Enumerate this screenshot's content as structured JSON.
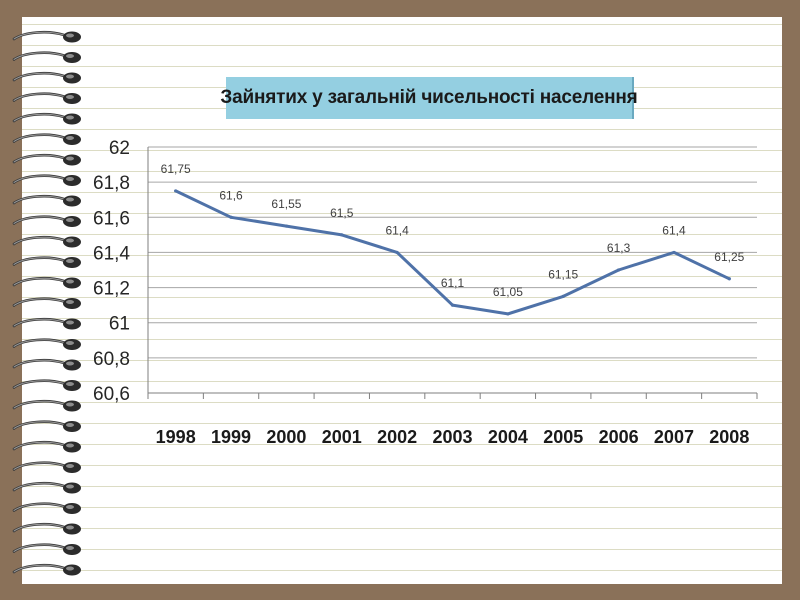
{
  "slide": {
    "background": "#8a7159",
    "paper": "#ffffff"
  },
  "chart_data": {
    "type": "line",
    "title": "Зайнятих у загальній чисельності населення",
    "categories": [
      "1998",
      "1999",
      "2000",
      "2001",
      "2002",
      "2003",
      "2004",
      "2005",
      "2006",
      "2007",
      "2008"
    ],
    "series": [
      {
        "values": [
          61.75,
          61.6,
          61.55,
          61.5,
          61.4,
          61.1,
          61.05,
          61.15,
          61.3,
          61.4,
          61.25
        ],
        "labels": [
          "61,75",
          "61,6",
          "61,55",
          "61,5",
          "61,4",
          "61,1",
          "61,05",
          "61,15",
          "61,3",
          "61,4",
          "61,25"
        ],
        "color": "#4f72a8"
      }
    ],
    "yticks": [
      "60,6",
      "60,8",
      "61",
      "61,2",
      "61,4",
      "61,6",
      "61,8",
      "62"
    ],
    "ylim": [
      60.6,
      62
    ],
    "ystep": 0.2,
    "grid": true,
    "gridColor": "#a6a6a6",
    "legend": "none"
  }
}
